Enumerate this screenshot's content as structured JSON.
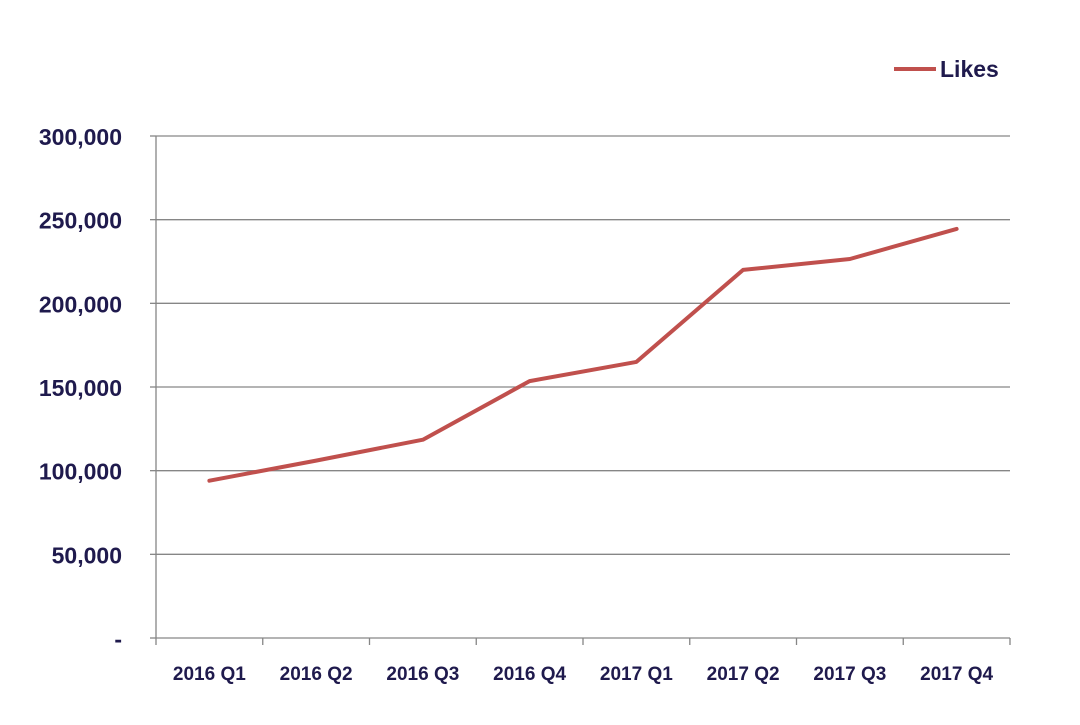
{
  "chart_data": {
    "type": "line",
    "title": "",
    "xlabel": "",
    "ylabel": "",
    "categories": [
      "2016 Q1",
      "2016 Q2",
      "2016 Q3",
      "2016 Q4",
      "2017 Q1",
      "2017 Q2",
      "2017 Q3",
      "2017 Q4"
    ],
    "series": [
      {
        "name": "Likes",
        "color": "#c0504d",
        "values": [
          94000,
          106000,
          118500,
          153500,
          165000,
          220000,
          226500,
          244500
        ]
      }
    ],
    "ylim": [
      0,
      300000
    ],
    "yticks": [
      0,
      50000,
      100000,
      150000,
      200000,
      250000,
      300000
    ],
    "ytick_labels": [
      "-",
      "50,000",
      "100,000",
      "150,000",
      "200,000",
      "250,000",
      "300,000"
    ],
    "grid": true,
    "legend": {
      "position": "top-right"
    }
  },
  "colors": {
    "text": "#1f1a4d",
    "grid": "#868686",
    "axis": "#868686"
  }
}
